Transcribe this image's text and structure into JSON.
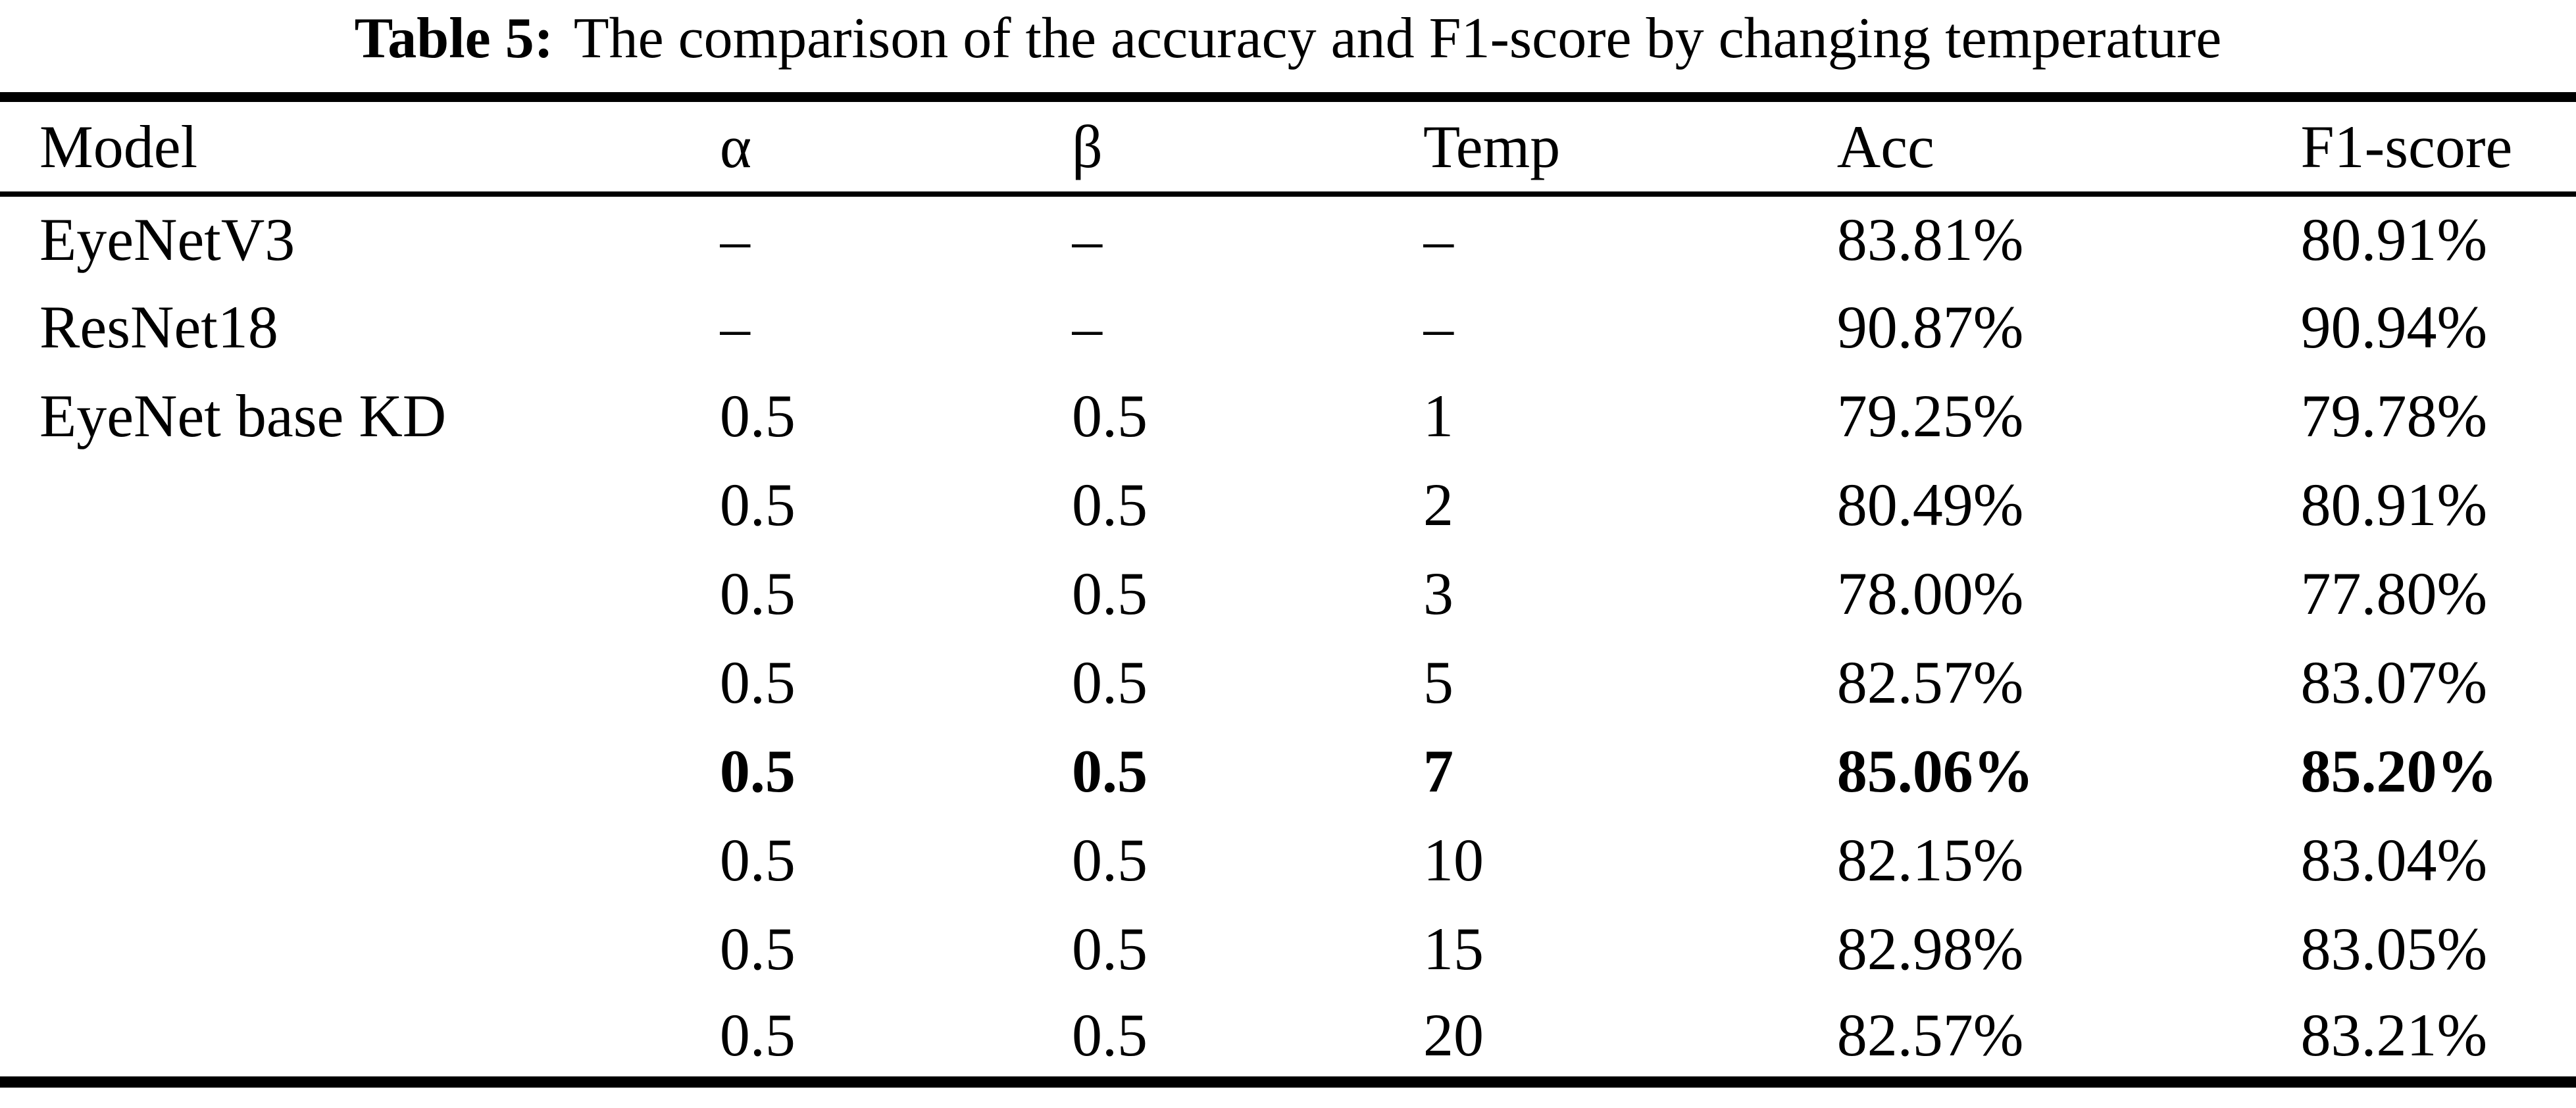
{
  "caption": {
    "label": "Table 5:",
    "text": "The comparison of the accuracy and F1-score by changing temperature"
  },
  "table": {
    "columns": [
      "Model",
      "α",
      "β",
      "Temp",
      "Acc",
      "F1-score"
    ],
    "bold_rows": [
      6
    ],
    "rows": [
      [
        "EyeNetV3",
        "–",
        "–",
        "–",
        "83.81%",
        "80.91%"
      ],
      [
        "ResNet18",
        "–",
        "–",
        "–",
        "90.87%",
        "90.94%"
      ],
      [
        "EyeNet base KD",
        "0.5",
        "0.5",
        "1",
        "79.25%",
        "79.78%"
      ],
      [
        "",
        "0.5",
        "0.5",
        "2",
        "80.49%",
        "80.91%"
      ],
      [
        "",
        "0.5",
        "0.5",
        "3",
        "78.00%",
        "77.80%"
      ],
      [
        "",
        "0.5",
        "0.5",
        "5",
        "82.57%",
        "83.07%"
      ],
      [
        "",
        "0.5",
        "0.5",
        "7",
        "85.06%",
        "85.20%"
      ],
      [
        "",
        "0.5",
        "0.5",
        "10",
        "82.15%",
        "83.04%"
      ],
      [
        "",
        "0.5",
        "0.5",
        "15",
        "82.98%",
        "83.05%"
      ],
      [
        "",
        "0.5",
        "0.5",
        "20",
        "82.57%",
        "83.21%"
      ]
    ]
  },
  "colors": {
    "text": "#000000",
    "background": "#ffffff",
    "rule": "#000000"
  }
}
